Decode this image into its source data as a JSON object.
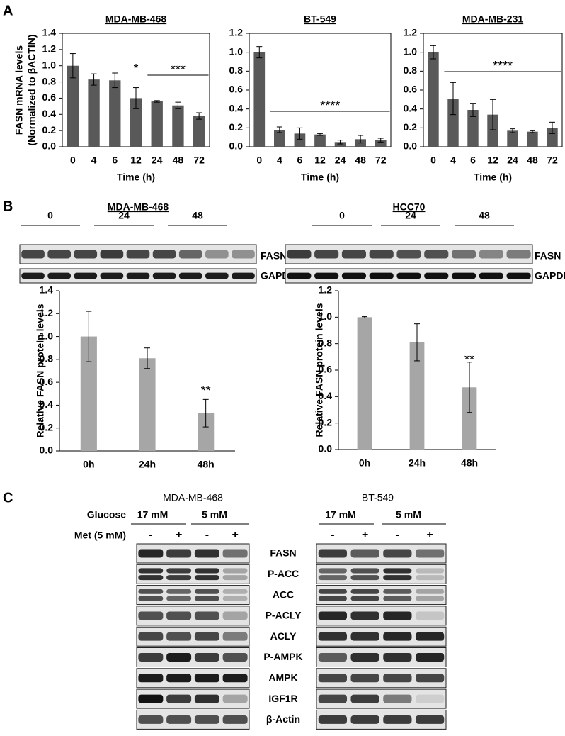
{
  "panels": [
    "A",
    "B",
    "C"
  ],
  "chart_data": [
    {
      "type": "bar",
      "title": "MDA-MB-468",
      "ylabel": [
        "FASN mRNA levels",
        "(Normalized to βACTIN)"
      ],
      "xlabel": "Time (h)",
      "categories": [
        "0",
        "4",
        "6",
        "12",
        "24",
        "48",
        "72"
      ],
      "values": [
        1.0,
        0.83,
        0.82,
        0.6,
        0.56,
        0.51,
        0.38
      ],
      "errors": [
        0.15,
        0.07,
        0.09,
        0.13,
        0.01,
        0.04,
        0.04
      ],
      "color": "#595959",
      "ylim": [
        0,
        1.4
      ],
      "yticks": [
        {
          "value": 0,
          "label": "0.0"
        },
        0.2,
        0.4,
        0.6,
        0.8,
        {
          "value": 1,
          "label": "1.0"
        },
        1.2,
        1.4
      ],
      "annotations": [
        "*",
        "***"
      ]
    },
    {
      "type": "bar",
      "title": "BT-549",
      "xlabel": "Time (h)",
      "categories": [
        "0",
        "4",
        "6",
        "12",
        "24",
        "48",
        "72"
      ],
      "values": [
        1.0,
        0.18,
        0.14,
        0.13,
        0.05,
        0.08,
        0.07
      ],
      "errors": [
        0.06,
        0.03,
        0.06,
        0.01,
        0.02,
        0.04,
        0.02
      ],
      "color": "#595959",
      "ylim": [
        0,
        1.2
      ],
      "yticks": [
        {
          "value": 0,
          "label": "0.0"
        },
        0.2,
        0.4,
        0.6,
        0.8,
        {
          "value": 1,
          "label": "1.0"
        },
        1.2
      ],
      "annotations": [
        "****"
      ]
    },
    {
      "type": "bar",
      "title": "MDA-MB-231",
      "xlabel": "Time (h)",
      "categories": [
        "0",
        "4",
        "6",
        "12",
        "24",
        "48",
        "72"
      ],
      "values": [
        1.0,
        0.51,
        0.39,
        0.34,
        0.17,
        0.16,
        0.2
      ],
      "errors": [
        0.07,
        0.17,
        0.07,
        0.16,
        0.02,
        0.01,
        0.06
      ],
      "color": "#595959",
      "ylim": [
        0,
        1.2
      ],
      "yticks": [
        {
          "value": 0,
          "label": "0.0"
        },
        0.2,
        0.4,
        0.6,
        0.8,
        {
          "value": 1,
          "label": "1.0"
        },
        1.2
      ],
      "annotations": [
        "****"
      ]
    },
    {
      "type": "bar",
      "ylabel": "Relative FASN protein levels",
      "categories": [
        "0h",
        "24h",
        "48h"
      ],
      "values": [
        1.0,
        0.81,
        0.33
      ],
      "errors": [
        0.22,
        0.09,
        0.12
      ],
      "color": "#a6a6a6",
      "ylim": [
        0,
        1.4
      ],
      "yticks": [
        {
          "value": 0,
          "label": "0.0"
        },
        0.2,
        0.4,
        0.6,
        0.8,
        {
          "value": 1,
          "label": "1.0"
        },
        1.2,
        1.4
      ],
      "annotations": [
        "**"
      ]
    },
    {
      "type": "bar",
      "ylabel": "Relative FASN protein levels",
      "categories": [
        "0h",
        "24h",
        "48h"
      ],
      "values": [
        1.0,
        0.81,
        0.47
      ],
      "errors": [
        0.005,
        0.14,
        0.19
      ],
      "color": "#a6a6a6",
      "ylim": [
        0,
        1.2
      ],
      "yticks": [
        {
          "value": 0,
          "label": "0.0"
        },
        0.2,
        0.4,
        0.6,
        0.8,
        {
          "value": 1,
          "label": "1.0"
        },
        1.2
      ],
      "annotations": [
        "**"
      ]
    }
  ],
  "blots_b": [
    {
      "title": "MDA-MB-468",
      "groups": [
        "0",
        "24",
        "48"
      ],
      "bands": [
        "FASN",
        "GAPDH"
      ]
    },
    {
      "title": "HCC70",
      "groups": [
        "0",
        "24",
        "48"
      ],
      "bands": [
        "FASN",
        "GAPDH"
      ]
    }
  ],
  "blots_c": {
    "glucose_label": "Glucose",
    "met_label": "Met (5 mM)",
    "cells": [
      {
        "title": "MDA-MB-468",
        "glucose": [
          "17 mM",
          "5 mM"
        ],
        "met": [
          "-",
          "+",
          "-",
          "+"
        ]
      },
      {
        "title": "BT-549",
        "glucose": [
          "17 mM",
          "5 mM"
        ],
        "met": [
          "-",
          "+",
          "-",
          "+"
        ]
      }
    ],
    "proteins": [
      "FASN",
      "P-ACC",
      "ACC",
      "P-ACLY",
      "ACLY",
      "P-AMPK",
      "AMPK",
      "IGF1R",
      "β-Actin"
    ]
  }
}
